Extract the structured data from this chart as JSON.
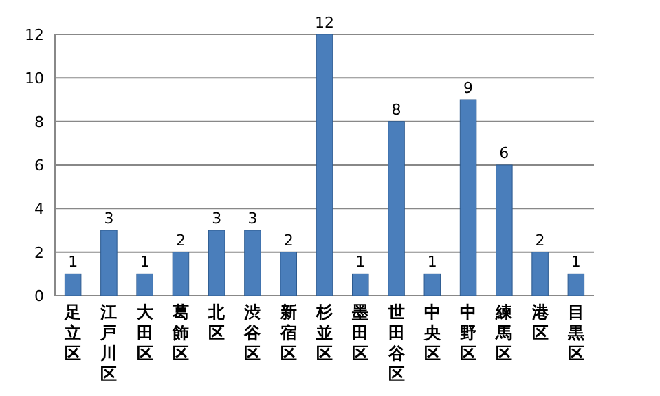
{
  "chart_data": {
    "type": "bar",
    "categories": [
      "足立区",
      "江戸川区",
      "大田区",
      "葛飾区",
      "北区",
      "渋谷区",
      "新宿区",
      "杉並区",
      "墨田区",
      "世田谷区",
      "中央区",
      "中野区",
      "練馬区",
      "港区",
      "目黒区"
    ],
    "values": [
      1,
      3,
      1,
      2,
      3,
      3,
      2,
      12,
      1,
      8,
      1,
      9,
      6,
      2,
      1
    ],
    "color": "#4a7ebb",
    "ylim": [
      0,
      12
    ],
    "yticks": [
      0,
      2,
      4,
      6,
      8,
      10,
      12
    ],
    "grid": "y",
    "data_labels": true
  }
}
